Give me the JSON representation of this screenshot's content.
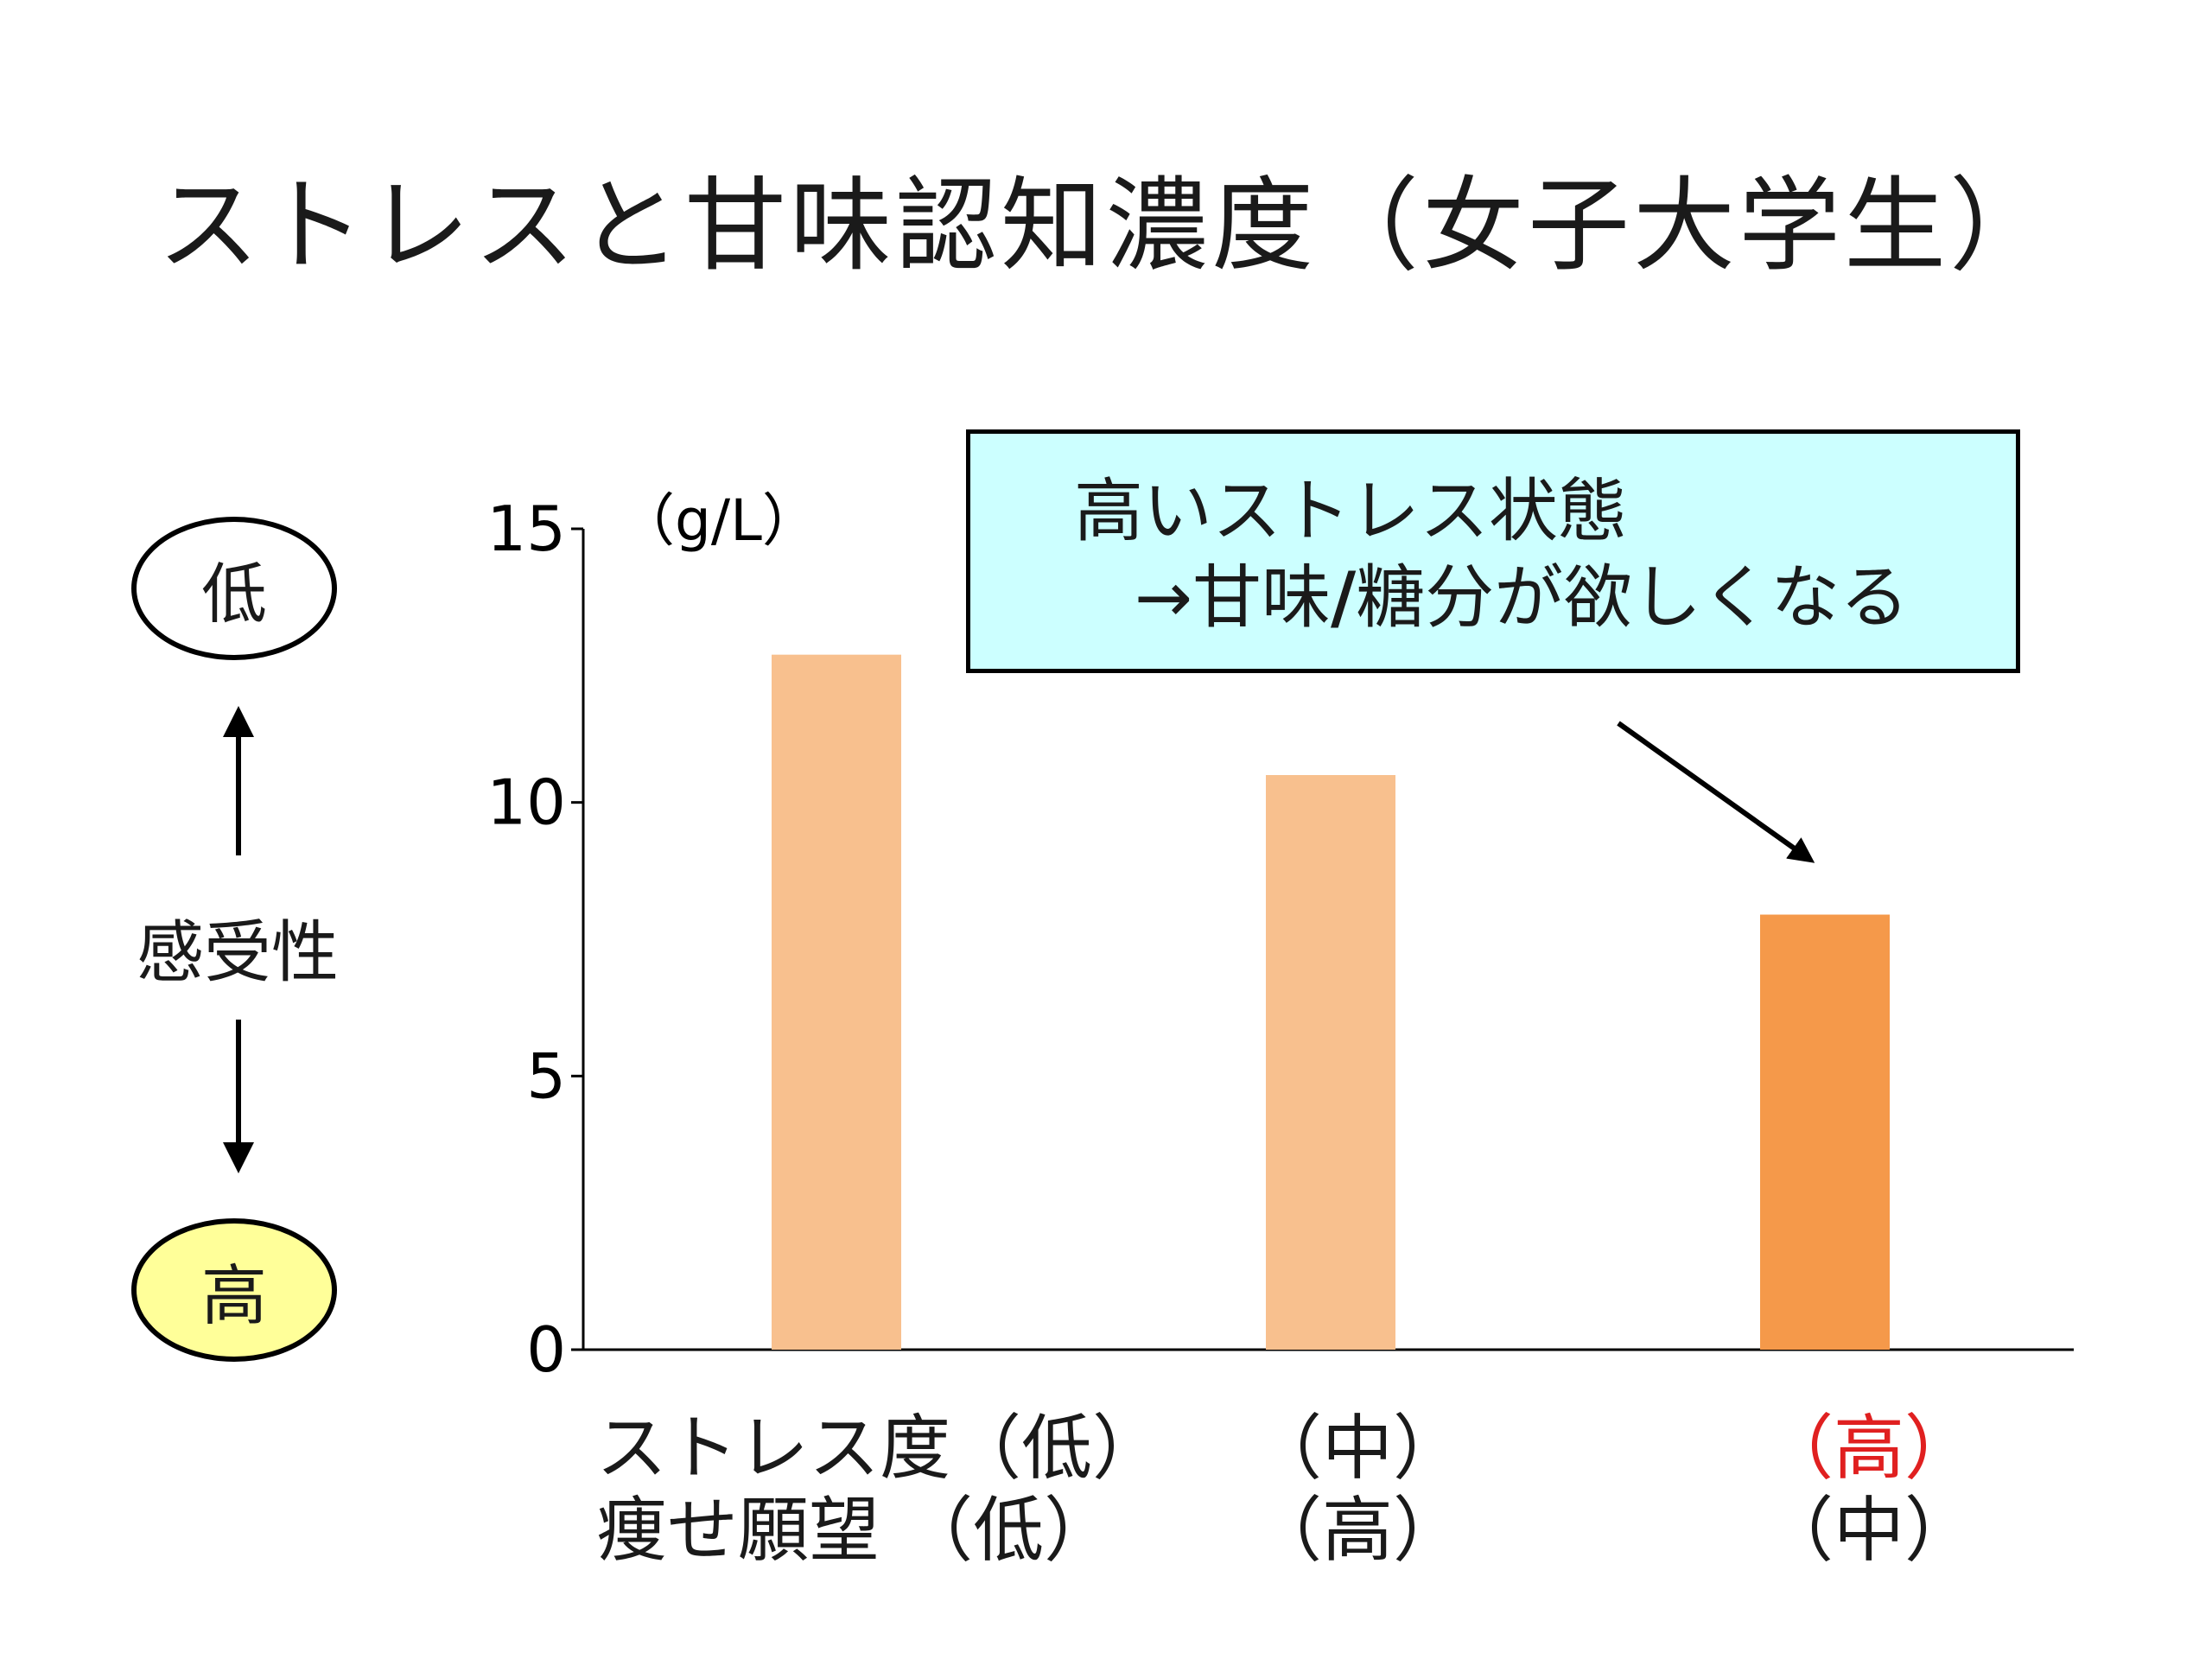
{
  "title": "ストレスと甘味認知濃度（女子大学生）",
  "sensitivity": {
    "low_label": "低",
    "high_label": "高",
    "axis_label": "感受性",
    "low_fill": "#ffffff",
    "high_fill": "#ffff99"
  },
  "callout": {
    "line1": "高いストレス状態",
    "line2_arrow": "→",
    "line2_a": "甘味",
    "line2_slash": "/",
    "line2_b": "糖分が欲しくなる",
    "fill": "#ccffff"
  },
  "chart_data": {
    "type": "bar",
    "unit": "（g/L）",
    "ylim": [
      0,
      15
    ],
    "yticks": [
      "0",
      "5",
      "10",
      "15"
    ],
    "categories": [
      "ストレス度（低） 痩せ願望（低）",
      "（中） （高）",
      "（高） （中）"
    ],
    "values": [
      12.7,
      10.5,
      7.95
    ],
    "colors": [
      "#f8c08e",
      "#f8c08e",
      "#f5994a"
    ]
  },
  "x_labels": {
    "col1_line1": "ストレス度（低）",
    "col1_line2": "痩せ願望 （低）",
    "col2_line1": "（中）",
    "col2_line2": "（高）",
    "col3_line1": "（高）",
    "col3_line2": "（中）"
  }
}
